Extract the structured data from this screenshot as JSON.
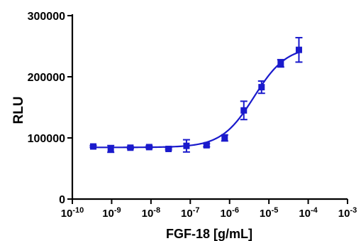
{
  "chart_data": {
    "type": "scatter",
    "xlabel": "FGF-18 [g/mL]",
    "ylabel": "RLU",
    "x_scale": "log",
    "xlim": [
      1e-10,
      0.001
    ],
    "ylim": [
      0,
      300000
    ],
    "x_tick_labels": [
      {
        "base": "10",
        "exp": "-10"
      },
      {
        "base": "10",
        "exp": "-9"
      },
      {
        "base": "10",
        "exp": "-8"
      },
      {
        "base": "10",
        "exp": "-7"
      },
      {
        "base": "10",
        "exp": "-6"
      },
      {
        "base": "10",
        "exp": "-5"
      },
      {
        "base": "10",
        "exp": "-4"
      },
      {
        "base": "10",
        "exp": "-3"
      }
    ],
    "y_ticks": [
      {
        "value": 0,
        "label": "0"
      },
      {
        "value": 100000,
        "label": "100000"
      },
      {
        "value": 200000,
        "label": "200000"
      },
      {
        "value": 300000,
        "label": "300000"
      }
    ],
    "series": [
      {
        "color": "#1a1acc",
        "marker": "square",
        "points": [
          {
            "x": 3.4e-10,
            "y": 86000,
            "err": 1500
          },
          {
            "x": 9.5e-10,
            "y": 82000,
            "err": 5500
          },
          {
            "x": 3e-09,
            "y": 84000,
            "err": 1500
          },
          {
            "x": 9e-09,
            "y": 85000,
            "err": 2000
          },
          {
            "x": 2.8e-08,
            "y": 82000,
            "err": 1500
          },
          {
            "x": 8e-08,
            "y": 87000,
            "err": 10000
          },
          {
            "x": 2.6e-07,
            "y": 88000,
            "err": 2500
          },
          {
            "x": 7.5e-07,
            "y": 100000,
            "err": 5000
          },
          {
            "x": 2.3e-06,
            "y": 145000,
            "err": 15000
          },
          {
            "x": 6.5e-06,
            "y": 183000,
            "err": 10000
          },
          {
            "x": 2e-05,
            "y": 222000,
            "err": 6000
          },
          {
            "x": 5.8e-05,
            "y": 244000,
            "err": 20000
          }
        ],
        "fit": {
          "bottom": 84500,
          "top": 250000,
          "ec50": 4.2e-06,
          "hill": 1.05
        }
      }
    ]
  }
}
